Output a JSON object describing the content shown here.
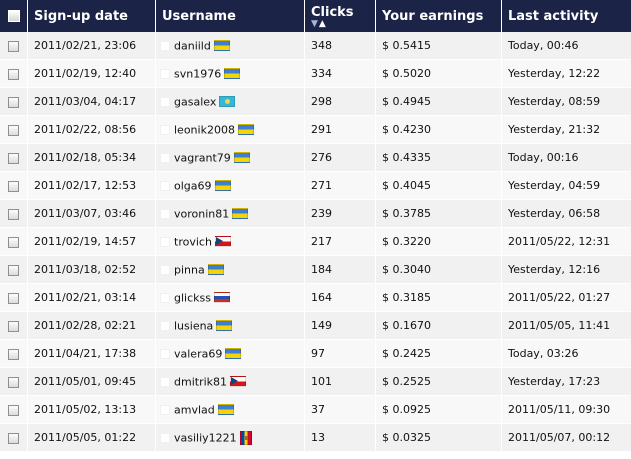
{
  "table": {
    "columns": {
      "signup": "Sign-up date",
      "username": "Username",
      "clicks": "Clicks",
      "earnings": "Your earnings",
      "last_activity": "Last activity"
    },
    "sort_icons": {
      "desc": "▼",
      "asc": "▲"
    },
    "rows": [
      {
        "signup": "2011/02/21, 23:06",
        "username": "daniild",
        "flag": "flag-ukraine",
        "clicks": "348",
        "earnings": "$ 0.5415",
        "last_activity": "Today, 00:46"
      },
      {
        "signup": "2011/02/19, 12:40",
        "username": "svn1976",
        "flag": "flag-ukraine",
        "clicks": "334",
        "earnings": "$ 0.5020",
        "last_activity": "Yesterday, 12:22"
      },
      {
        "signup": "2011/03/04, 04:17",
        "username": "gasalex",
        "flag": "flag-kazakhstan",
        "clicks": "298",
        "earnings": "$ 0.4945",
        "last_activity": "Yesterday, 08:59"
      },
      {
        "signup": "2011/02/22, 08:56",
        "username": "leonik2008",
        "flag": "flag-ukraine",
        "clicks": "291",
        "earnings": "$ 0.4230",
        "last_activity": "Yesterday, 21:32"
      },
      {
        "signup": "2011/02/18, 05:34",
        "username": "vagrant79",
        "flag": "flag-ukraine",
        "clicks": "276",
        "earnings": "$ 0.4335",
        "last_activity": "Today, 00:16"
      },
      {
        "signup": "2011/02/17, 12:53",
        "username": "olga69",
        "flag": "flag-ukraine",
        "clicks": "271",
        "earnings": "$ 0.4045",
        "last_activity": "Yesterday, 04:59"
      },
      {
        "signup": "2011/03/07, 03:46",
        "username": "voronin81",
        "flag": "flag-ukraine",
        "clicks": "239",
        "earnings": "$ 0.3785",
        "last_activity": "Yesterday, 06:58"
      },
      {
        "signup": "2011/02/19, 14:57",
        "username": "trovich",
        "flag": "flag-czech",
        "clicks": "217",
        "earnings": "$ 0.3220",
        "last_activity": "2011/05/22, 12:31"
      },
      {
        "signup": "2011/03/18, 02:52",
        "username": "pinna",
        "flag": "flag-ukraine",
        "clicks": "184",
        "earnings": "$ 0.3040",
        "last_activity": "Yesterday, 12:16"
      },
      {
        "signup": "2011/02/21, 03:14",
        "username": "glickss",
        "flag": "flag-russia",
        "clicks": "164",
        "earnings": "$ 0.3185",
        "last_activity": "2011/05/22, 01:27"
      },
      {
        "signup": "2011/02/28, 02:21",
        "username": "lusiena",
        "flag": "flag-ukraine",
        "clicks": "149",
        "earnings": "$ 0.1670",
        "last_activity": "2011/05/05, 11:41"
      },
      {
        "signup": "2011/04/21, 17:38",
        "username": "valera69",
        "flag": "flag-ukraine",
        "clicks": "97",
        "earnings": "$ 0.2425",
        "last_activity": "Today, 03:26"
      },
      {
        "signup": "2011/05/01, 09:45",
        "username": "dmitrik81",
        "flag": "flag-czech",
        "clicks": "101",
        "earnings": "$ 0.2525",
        "last_activity": "Yesterday, 17:23"
      },
      {
        "signup": "2011/05/02, 13:13",
        "username": "amvlad",
        "flag": "flag-ukraine",
        "clicks": "37",
        "earnings": "$ 0.0925",
        "last_activity": "2011/05/11, 09:30"
      },
      {
        "signup": "2011/05/05, 01:22",
        "username": "vasiliy1221",
        "flag": "flag-moldova",
        "clicks": "13",
        "earnings": "$ 0.0325",
        "last_activity": "2011/05/07, 00:12"
      }
    ]
  }
}
